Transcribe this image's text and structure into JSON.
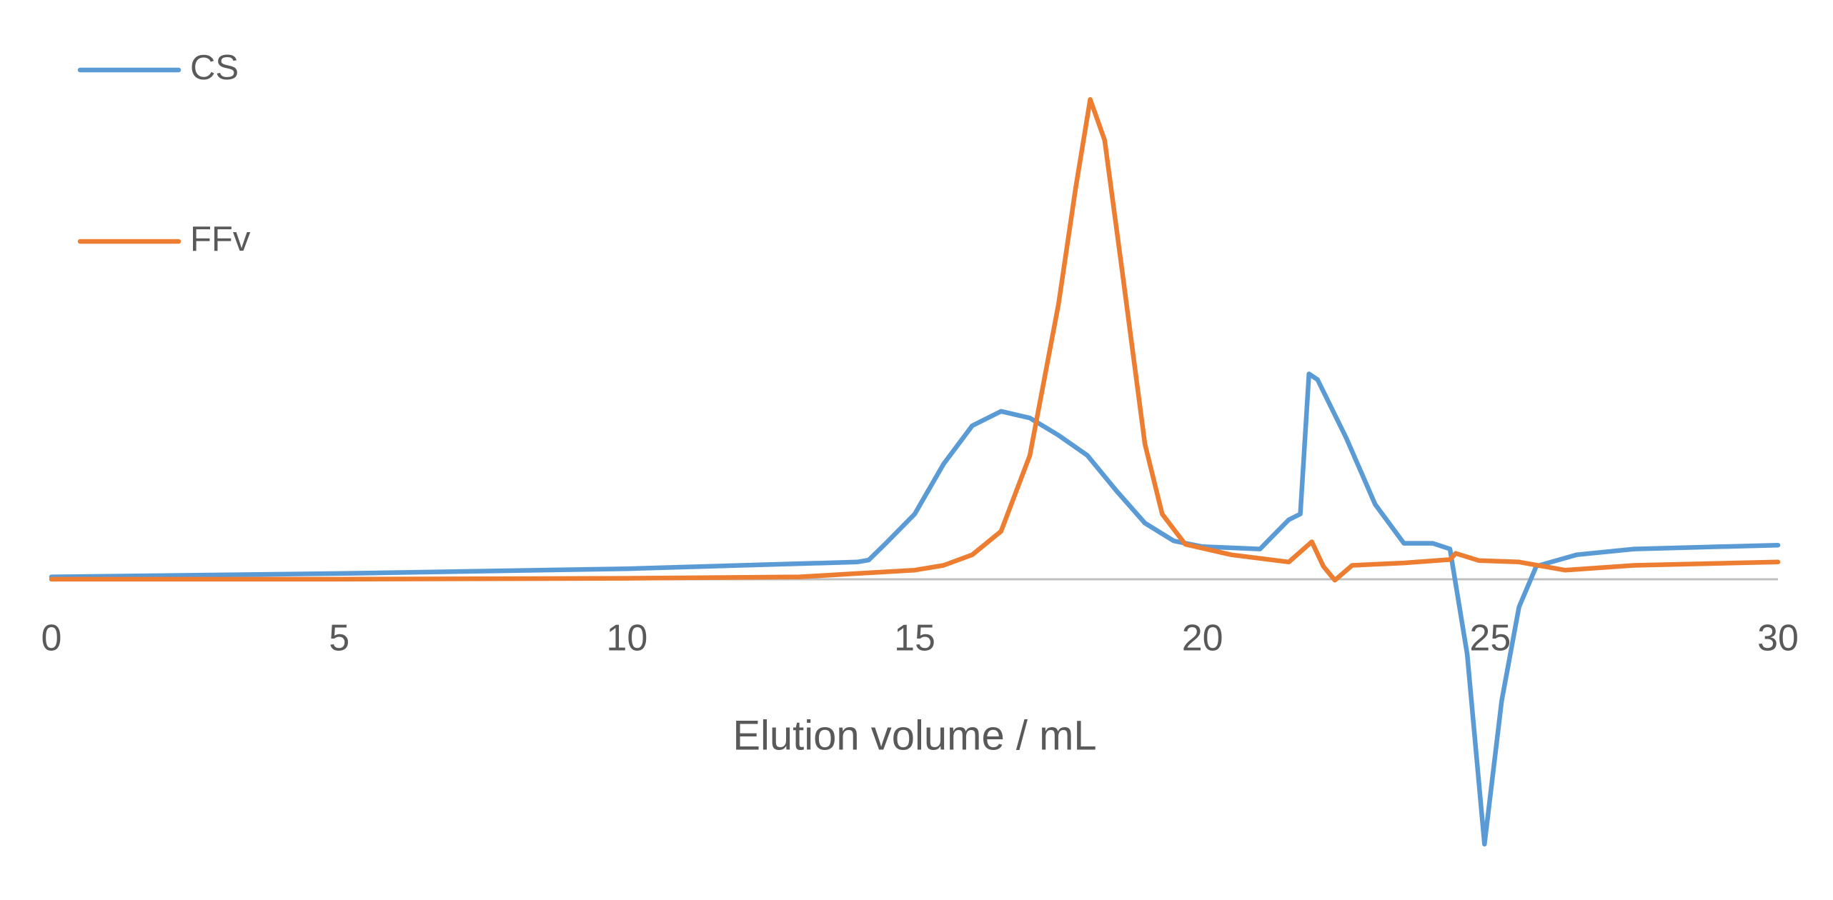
{
  "chart_data": {
    "type": "line",
    "x_label": "Elution volume / mL",
    "xlim": [
      0,
      30
    ],
    "xticks": [
      0,
      5,
      10,
      15,
      20,
      25,
      30
    ],
    "ylim": [
      -60,
      110
    ],
    "legend": "top-left",
    "series": [
      {
        "name": "CS",
        "color": "#5b9bd5",
        "x": [
          0,
          5,
          10,
          14,
          14.2,
          14.5,
          15,
          15.5,
          16,
          16.5,
          17,
          17.5,
          18,
          18.5,
          19,
          19.5,
          20,
          21,
          21.5,
          21.7,
          21.85,
          22,
          22.5,
          23,
          23.5,
          24,
          24.3,
          24.6,
          24.9,
          25.2,
          25.5,
          25.8,
          26.5,
          27.5,
          30
        ],
        "values": [
          0.5,
          1.2,
          2.2,
          3.6,
          4,
          7.5,
          13.6,
          24,
          32,
          35,
          33.6,
          30,
          25.8,
          18.5,
          11.7,
          8,
          6.8,
          6.3,
          12.4,
          13.6,
          42.8,
          41.6,
          29.4,
          15.6,
          7.5,
          7.5,
          6.3,
          -15.6,
          -55.2,
          -25.3,
          -5.8,
          2.7,
          5.1,
          6.3,
          7.1
        ]
      },
      {
        "name": "FFv",
        "color": "#ed7d31",
        "x": [
          0,
          5,
          10,
          13,
          14,
          15,
          15.5,
          16,
          16.5,
          17,
          17.5,
          17.8,
          18.05,
          18.3,
          18.6,
          19,
          19.3,
          19.7,
          20.5,
          21.5,
          21.9,
          22.1,
          22.3,
          22.6,
          23.5,
          24.3,
          24.4,
          24.8,
          25.5,
          26.3,
          27.5,
          30
        ],
        "values": [
          0,
          0,
          0.2,
          0.5,
          1.2,
          1.9,
          2.9,
          5.1,
          10,
          25.8,
          57.4,
          81.8,
          100,
          91.5,
          64.7,
          28.2,
          13.6,
          7.3,
          5.1,
          3.6,
          7.8,
          2.7,
          -0.2,
          2.9,
          3.4,
          4.1,
          5.4,
          3.9,
          3.6,
          1.9,
          2.9,
          3.6
        ]
      }
    ]
  }
}
